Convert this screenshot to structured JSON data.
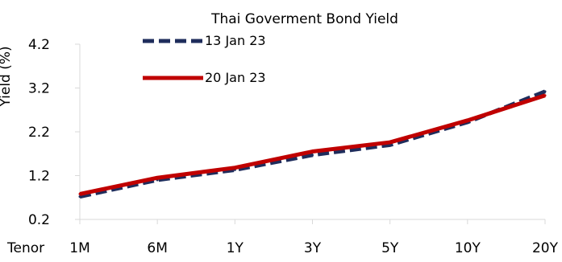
{
  "chart_data": {
    "type": "line",
    "title": "Thai Goverment Bond Yield",
    "ylabel": "Yield (%)",
    "xlabel": "Tenor",
    "categories": [
      "1M",
      "6M",
      "1Y",
      "3Y",
      "5Y",
      "10Y",
      "20Y"
    ],
    "yticks": [
      "0.2",
      "1.2",
      "2.2",
      "3.2",
      "4.2"
    ],
    "ylim": [
      0.2,
      4.2
    ],
    "legend_position": "top-left",
    "grid": false,
    "series": [
      {
        "name": "13 Jan 23",
        "values": [
          0.72,
          1.1,
          1.33,
          1.67,
          1.9,
          2.42,
          3.12
        ],
        "color": "#1f2d5c",
        "style": "dashed"
      },
      {
        "name": "20 Jan 23",
        "values": [
          0.78,
          1.15,
          1.38,
          1.75,
          1.96,
          2.46,
          3.03
        ],
        "color": "#c00000",
        "style": "solid"
      }
    ]
  }
}
